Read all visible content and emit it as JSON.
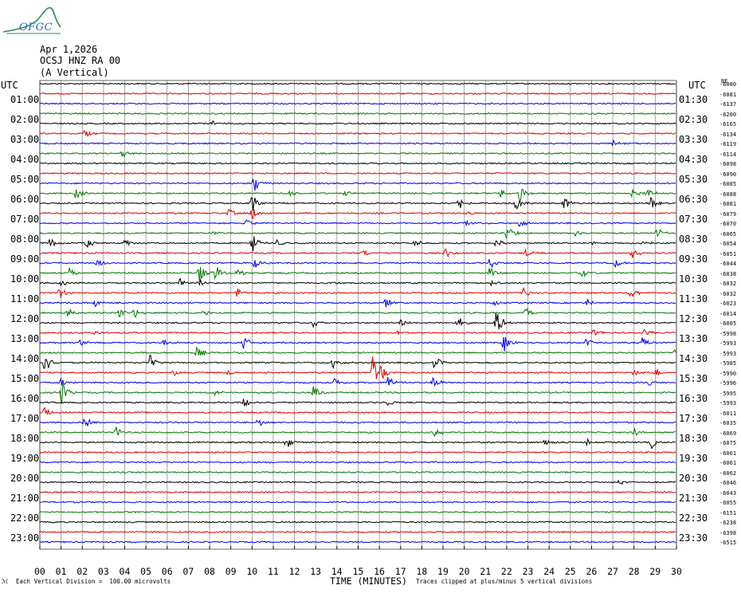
{
  "header": {
    "logo_text": "OFGC",
    "date": "Apr 1,2026",
    "station": "OCSJ HNZ RA 00",
    "component": "(A Vertical)"
  },
  "axes": {
    "left_title": "UTC",
    "right_title": "UTC",
    "right_corner_label": "BE",
    "xlabel": "TIME (MINUTES)"
  },
  "footer": {
    "left_mark": "ℳ",
    "scale_note": "Each Vertical Division =  100.00 microvolts",
    "clip_note": "Traces clipped at plus/minus 5 vertical divisions"
  },
  "colors": {
    "trace_cycle": [
      "#000000",
      "#dd0000",
      "#0000ee",
      "#007700"
    ],
    "grid": "#909090",
    "logo": "#2e8b57",
    "logo_text": "#2e6fa8"
  },
  "chart_data": {
    "type": "line",
    "title": "",
    "xlim": [
      0,
      30
    ],
    "x_ticks": [
      "00",
      "01",
      "02",
      "03",
      "04",
      "05",
      "06",
      "07",
      "08",
      "09",
      "10",
      "11",
      "12",
      "13",
      "14",
      "15",
      "16",
      "17",
      "18",
      "19",
      "20",
      "21",
      "22",
      "23",
      "24",
      "25",
      "26",
      "27",
      "28",
      "29",
      "30"
    ],
    "grid": true,
    "left_labels": [
      {
        "row": 0,
        "text": ""
      },
      {
        "row": 1,
        "text": "01:00"
      },
      {
        "row": 3,
        "text": "02:00"
      },
      {
        "row": 5,
        "text": "03:00"
      },
      {
        "row": 7,
        "text": "04:00"
      },
      {
        "row": 9,
        "text": "05:00"
      },
      {
        "row": 11,
        "text": "06:00"
      },
      {
        "row": 13,
        "text": "07:00"
      },
      {
        "row": 15,
        "text": "08:00"
      },
      {
        "row": 17,
        "text": "09:00"
      },
      {
        "row": 19,
        "text": "10:00"
      },
      {
        "row": 21,
        "text": "11:00"
      },
      {
        "row": 23,
        "text": "12:00"
      },
      {
        "row": 25,
        "text": "13:00"
      },
      {
        "row": 27,
        "text": "14:00"
      },
      {
        "row": 29,
        "text": "15:00"
      },
      {
        "row": 31,
        "text": "16:00"
      },
      {
        "row": 33,
        "text": "17:00"
      },
      {
        "row": 35,
        "text": "18:00"
      },
      {
        "row": 37,
        "text": "19:00"
      },
      {
        "row": 39,
        "text": "20:00"
      },
      {
        "row": 41,
        "text": "21:00"
      },
      {
        "row": 43,
        "text": "22:00"
      },
      {
        "row": 45,
        "text": "23:00"
      }
    ],
    "right_labels": [
      {
        "row": 1,
        "text": "01:30"
      },
      {
        "row": 3,
        "text": "02:30"
      },
      {
        "row": 5,
        "text": "03:30"
      },
      {
        "row": 7,
        "text": "04:30"
      },
      {
        "row": 9,
        "text": "05:30"
      },
      {
        "row": 11,
        "text": "06:30"
      },
      {
        "row": 13,
        "text": "07:30"
      },
      {
        "row": 15,
        "text": "08:30"
      },
      {
        "row": 17,
        "text": "09:30"
      },
      {
        "row": 19,
        "text": "10:30"
      },
      {
        "row": 21,
        "text": "11:30"
      },
      {
        "row": 23,
        "text": "12:30"
      },
      {
        "row": 25,
        "text": "13:30"
      },
      {
        "row": 27,
        "text": "14:30"
      },
      {
        "row": 29,
        "text": "15:30"
      },
      {
        "row": 31,
        "text": "16:30"
      },
      {
        "row": 33,
        "text": "17:30"
      },
      {
        "row": 35,
        "text": "18:30"
      },
      {
        "row": 37,
        "text": "19:30"
      },
      {
        "row": 39,
        "text": "20:30"
      },
      {
        "row": 41,
        "text": "21:30"
      },
      {
        "row": 43,
        "text": "22:30"
      },
      {
        "row": 45,
        "text": "23:30"
      }
    ],
    "trace_offsets": [
      "-6080",
      "-6081",
      "-6137",
      "-6200",
      "-6165",
      "-6134",
      "-6119",
      "-6114",
      "-6098",
      "-6090",
      "-6085",
      "-6088",
      "-6081",
      "-6079",
      "-6070",
      "-6065",
      "-6054",
      "-6051",
      "-6044",
      "-6038",
      "-6032",
      "-6032",
      "-6023",
      "-6014",
      "-6005",
      "-5998",
      "-5993",
      "-5993",
      "-5985",
      "-5990",
      "-5996",
      "-5995",
      "-5993",
      "-6011",
      "-6035",
      "-6069",
      "-6075",
      "-6061",
      "-6061",
      "-6062",
      "-6046",
      "-6043",
      "-6055",
      "-6151",
      "-6238",
      "-6398",
      "-6515"
    ],
    "events": [
      {
        "row": 4,
        "x": 8.1,
        "amp": 0.3
      },
      {
        "row": 5,
        "x": 2.1,
        "amp": 0.5
      },
      {
        "row": 6,
        "x": 27.0,
        "amp": 0.3
      },
      {
        "row": 7,
        "x": 3.9,
        "amp": 0.5
      },
      {
        "row": 10,
        "x": 10.1,
        "amp": 1.0
      },
      {
        "row": 11,
        "x": 1.7,
        "amp": 0.6
      },
      {
        "row": 11,
        "x": 14.4,
        "amp": 0.3
      },
      {
        "row": 11,
        "x": 11.7,
        "amp": 0.4
      },
      {
        "row": 11,
        "x": 21.7,
        "amp": 0.5
      },
      {
        "row": 11,
        "x": 22.6,
        "amp": 0.9
      },
      {
        "row": 11,
        "x": 27.9,
        "amp": 0.5
      },
      {
        "row": 11,
        "x": 28.6,
        "amp": 0.6
      },
      {
        "row": 12,
        "x": 10.0,
        "amp": 1.2
      },
      {
        "row": 12,
        "x": 19.7,
        "amp": 0.9
      },
      {
        "row": 12,
        "x": 22.4,
        "amp": 1.0
      },
      {
        "row": 12,
        "x": 24.7,
        "amp": 0.7
      },
      {
        "row": 12,
        "x": 28.8,
        "amp": 0.7
      },
      {
        "row": 13,
        "x": 8.9,
        "amp": 0.5
      },
      {
        "row": 13,
        "x": 10.0,
        "amp": 0.8
      },
      {
        "row": 13,
        "x": 20.1,
        "amp": 0.3
      },
      {
        "row": 14,
        "x": 9.7,
        "amp": 0.5
      },
      {
        "row": 14,
        "x": 20.1,
        "amp": 0.4
      },
      {
        "row": 14,
        "x": 22.6,
        "amp": 0.5
      },
      {
        "row": 15,
        "x": 8.1,
        "amp": 0.3
      },
      {
        "row": 15,
        "x": 22.0,
        "amp": 1.0
      },
      {
        "row": 15,
        "x": 25.2,
        "amp": 0.4
      },
      {
        "row": 15,
        "x": 29.1,
        "amp": 0.6
      },
      {
        "row": 16,
        "x": 0.5,
        "amp": 0.6
      },
      {
        "row": 16,
        "x": 2.2,
        "amp": 0.6
      },
      {
        "row": 16,
        "x": 4.0,
        "amp": 0.5
      },
      {
        "row": 16,
        "x": 10.0,
        "amp": 1.2
      },
      {
        "row": 16,
        "x": 11.2,
        "amp": 0.5
      },
      {
        "row": 16,
        "x": 17.6,
        "amp": 0.6
      },
      {
        "row": 16,
        "x": 21.5,
        "amp": 0.5
      },
      {
        "row": 16,
        "x": 26.0,
        "amp": 0.3
      },
      {
        "row": 16,
        "x": 28.4,
        "amp": 0.5
      },
      {
        "row": 17,
        "x": 15.2,
        "amp": 0.4
      },
      {
        "row": 17,
        "x": 19.1,
        "amp": 0.6
      },
      {
        "row": 17,
        "x": 22.9,
        "amp": 0.4
      },
      {
        "row": 17,
        "x": 27.9,
        "amp": 0.9
      },
      {
        "row": 18,
        "x": 2.7,
        "amp": 0.6
      },
      {
        "row": 18,
        "x": 10.1,
        "amp": 0.6
      },
      {
        "row": 18,
        "x": 21.2,
        "amp": 0.6
      },
      {
        "row": 18,
        "x": 27.1,
        "amp": 0.5
      },
      {
        "row": 19,
        "x": 1.4,
        "amp": 0.6
      },
      {
        "row": 19,
        "x": 7.5,
        "amp": 1.2
      },
      {
        "row": 19,
        "x": 8.3,
        "amp": 1.0
      },
      {
        "row": 19,
        "x": 9.3,
        "amp": 0.5
      },
      {
        "row": 19,
        "x": 21.2,
        "amp": 0.6
      },
      {
        "row": 19,
        "x": 25.5,
        "amp": 0.6
      },
      {
        "row": 20,
        "x": 1.0,
        "amp": 0.4
      },
      {
        "row": 20,
        "x": 6.6,
        "amp": 0.5
      },
      {
        "row": 20,
        "x": 7.5,
        "amp": 0.4
      },
      {
        "row": 20,
        "x": 13.9,
        "amp": 0.3
      },
      {
        "row": 20,
        "x": 21.3,
        "amp": 0.4
      },
      {
        "row": 21,
        "x": 0.9,
        "amp": 0.8
      },
      {
        "row": 21,
        "x": 9.3,
        "amp": 0.6
      },
      {
        "row": 21,
        "x": 22.8,
        "amp": 0.5
      },
      {
        "row": 21,
        "x": 27.8,
        "amp": 0.9
      },
      {
        "row": 22,
        "x": 2.6,
        "amp": 0.5
      },
      {
        "row": 22,
        "x": 16.3,
        "amp": 0.6
      },
      {
        "row": 22,
        "x": 21.4,
        "amp": 0.4
      },
      {
        "row": 22,
        "x": 25.8,
        "amp": 0.5
      },
      {
        "row": 23,
        "x": 1.3,
        "amp": 0.7
      },
      {
        "row": 23,
        "x": 3.7,
        "amp": 0.6
      },
      {
        "row": 23,
        "x": 4.4,
        "amp": 0.8
      },
      {
        "row": 23,
        "x": 7.7,
        "amp": 0.4
      },
      {
        "row": 23,
        "x": 22.9,
        "amp": 0.6
      },
      {
        "row": 24,
        "x": 12.9,
        "amp": 0.6
      },
      {
        "row": 24,
        "x": 17.0,
        "amp": 0.4
      },
      {
        "row": 24,
        "x": 19.7,
        "amp": 0.7
      },
      {
        "row": 24,
        "x": 21.5,
        "amp": 1.6
      },
      {
        "row": 25,
        "x": 2.6,
        "amp": 0.3
      },
      {
        "row": 25,
        "x": 16.9,
        "amp": 0.3
      },
      {
        "row": 25,
        "x": 26.1,
        "amp": 0.5
      },
      {
        "row": 25,
        "x": 28.5,
        "amp": 0.5
      },
      {
        "row": 26,
        "x": 1.9,
        "amp": 0.5
      },
      {
        "row": 26,
        "x": 5.8,
        "amp": 0.4
      },
      {
        "row": 26,
        "x": 9.6,
        "amp": 0.8
      },
      {
        "row": 26,
        "x": 21.8,
        "amp": 1.5
      },
      {
        "row": 26,
        "x": 25.7,
        "amp": 0.6
      },
      {
        "row": 26,
        "x": 28.4,
        "amp": 0.7
      },
      {
        "row": 27,
        "x": 7.4,
        "amp": 0.6
      },
      {
        "row": 27,
        "x": 29.9,
        "amp": 0.7
      },
      {
        "row": 28,
        "x": 0.2,
        "amp": 1.5
      },
      {
        "row": 28,
        "x": 5.2,
        "amp": 0.9
      },
      {
        "row": 28,
        "x": 13.8,
        "amp": 0.8
      },
      {
        "row": 28,
        "x": 18.6,
        "amp": 0.8
      },
      {
        "row": 29,
        "x": 6.3,
        "amp": 0.4
      },
      {
        "row": 29,
        "x": 8.9,
        "amp": 0.5
      },
      {
        "row": 29,
        "x": 15.7,
        "amp": 4.0
      },
      {
        "row": 29,
        "x": 16.0,
        "amp": 1.2
      },
      {
        "row": 29,
        "x": 28.0,
        "amp": 0.4
      },
      {
        "row": 29,
        "x": 29.0,
        "amp": 0.5
      },
      {
        "row": 30,
        "x": 1.0,
        "amp": 0.5
      },
      {
        "row": 30,
        "x": 13.9,
        "amp": 0.5
      },
      {
        "row": 30,
        "x": 16.4,
        "amp": 0.9
      },
      {
        "row": 30,
        "x": 18.5,
        "amp": 0.8
      },
      {
        "row": 30,
        "x": 28.7,
        "amp": 0.4
      },
      {
        "row": 31,
        "x": 1.0,
        "amp": 1.3
      },
      {
        "row": 31,
        "x": 8.2,
        "amp": 0.4
      },
      {
        "row": 31,
        "x": 12.9,
        "amp": 0.9
      },
      {
        "row": 32,
        "x": 9.6,
        "amp": 0.6
      },
      {
        "row": 32,
        "x": 16.4,
        "amp": 0.4
      },
      {
        "row": 33,
        "x": 0.2,
        "amp": 0.7
      },
      {
        "row": 34,
        "x": 2.1,
        "amp": 0.8
      },
      {
        "row": 34,
        "x": 10.3,
        "amp": 0.5
      },
      {
        "row": 35,
        "x": 3.6,
        "amp": 0.8
      },
      {
        "row": 35,
        "x": 18.6,
        "amp": 0.7
      },
      {
        "row": 35,
        "x": 28.0,
        "amp": 0.6
      },
      {
        "row": 36,
        "x": 11.6,
        "amp": 0.8
      },
      {
        "row": 36,
        "x": 23.8,
        "amp": 0.6
      },
      {
        "row": 36,
        "x": 25.8,
        "amp": 0.4
      },
      {
        "row": 36,
        "x": 28.8,
        "amp": 0.7
      },
      {
        "row": 40,
        "x": 27.3,
        "amp": 0.4
      }
    ]
  }
}
